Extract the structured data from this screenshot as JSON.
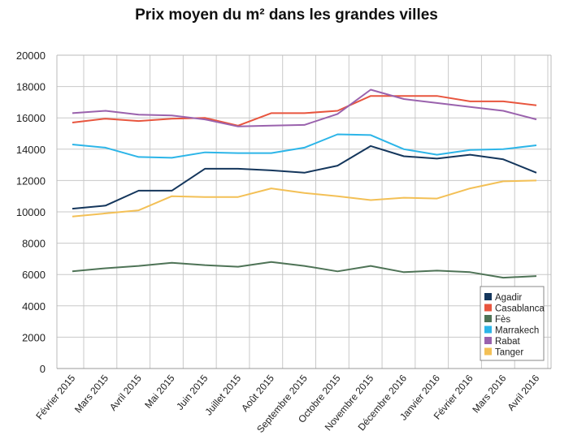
{
  "chart_data": {
    "type": "line",
    "title": "Prix moyen du m² dans les grandes villes",
    "xlabel": "",
    "ylabel": "",
    "ylim": [
      0,
      20000
    ],
    "yticks": [
      "0",
      "2000",
      "4000",
      "6000",
      "8000",
      "10000",
      "12000",
      "14000",
      "16000",
      "18000",
      "20000"
    ],
    "grid": true,
    "legend_position": "bottom-right",
    "categories": [
      "Février 2015",
      "Mars 2015",
      "Avril 2015",
      "Mai 2015",
      "Juin 2015",
      "Juillet 2015",
      "Août 2015",
      "Septembre 2015",
      "Octobre 2015",
      "Novembre 2015",
      "Décembre 2016",
      "Janvier 2016",
      "Février 2016",
      "Mars 2016",
      "Avril 2016"
    ],
    "series": [
      {
        "name": "Agadir",
        "color": "#14365c",
        "values": [
          10200,
          10400,
          11350,
          11350,
          12750,
          12750,
          12650,
          12500,
          12950,
          14200,
          13550,
          13400,
          13650,
          13350,
          12500
        ]
      },
      {
        "name": "Casablanca",
        "color": "#e8553e",
        "values": [
          15700,
          15950,
          15800,
          15950,
          16000,
          15500,
          16300,
          16300,
          16450,
          17400,
          17400,
          17400,
          17050,
          17050,
          16800
        ]
      },
      {
        "name": "Fès",
        "color": "#4e7356",
        "values": [
          6200,
          6400,
          6550,
          6750,
          6600,
          6500,
          6800,
          6550,
          6200,
          6550,
          6150,
          6250,
          6150,
          5800,
          5900
        ]
      },
      {
        "name": "Marrakech",
        "color": "#2cb5e8",
        "values": [
          14300,
          14100,
          13500,
          13450,
          13800,
          13750,
          13750,
          14100,
          14950,
          14900,
          14000,
          13650,
          13950,
          14000,
          14250
        ]
      },
      {
        "name": "Rabat",
        "color": "#9a62ad",
        "values": [
          16300,
          16450,
          16200,
          16150,
          15900,
          15450,
          15500,
          15550,
          16250,
          17800,
          17200,
          16950,
          16700,
          16450,
          15900
        ]
      },
      {
        "name": "Tanger",
        "color": "#f3c056",
        "values": [
          9700,
          9900,
          10100,
          11000,
          10950,
          10950,
          11500,
          11200,
          11000,
          10750,
          10900,
          10850,
          11500,
          11950,
          12000
        ]
      }
    ]
  }
}
